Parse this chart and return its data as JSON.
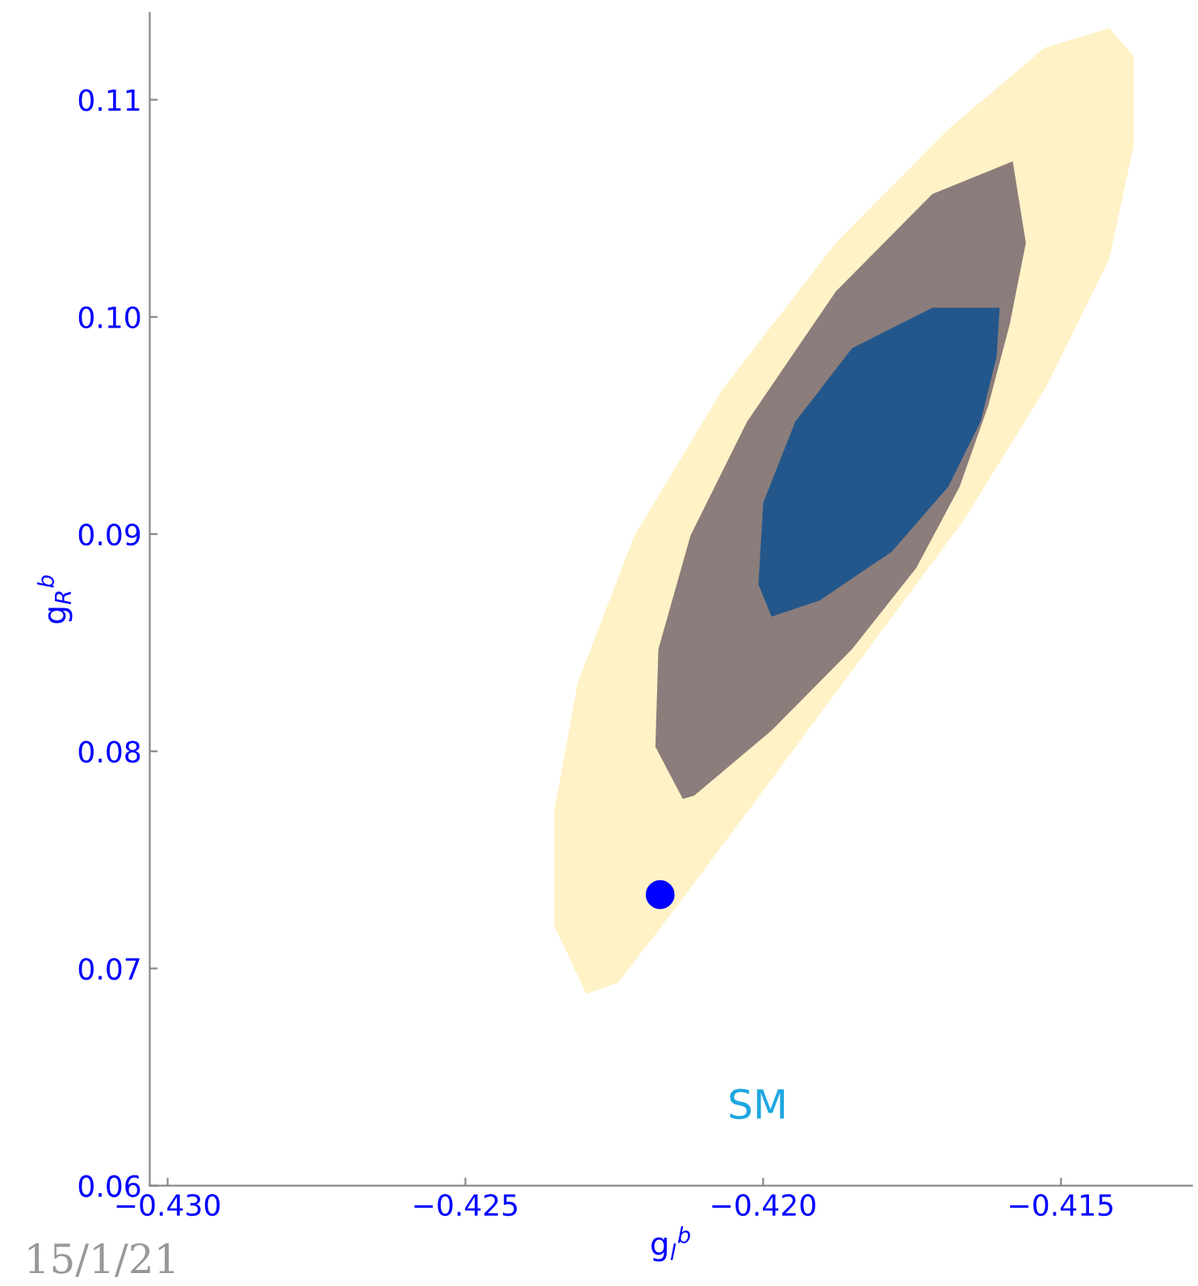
{
  "chart_data": {
    "type": "area",
    "xlabel": "g$_{l}$$^{b}$",
    "ylabel": "g$_{R}$$^{b}$",
    "xlim": [
      -0.4303,
      -0.4128
    ],
    "ylim": [
      0.06,
      0.114
    ],
    "xticks": [
      {
        "value": -0.43,
        "label": "−0.430"
      },
      {
        "value": -0.425,
        "label": "−0.425"
      },
      {
        "value": -0.42,
        "label": "−0.420"
      },
      {
        "value": -0.415,
        "label": "−0.415"
      }
    ],
    "yticks": [
      {
        "value": 0.06,
        "label": "0.06"
      },
      {
        "value": 0.07,
        "label": "0.07"
      },
      {
        "value": 0.08,
        "label": "0.08"
      },
      {
        "value": 0.09,
        "label": "0.09"
      },
      {
        "value": 0.1,
        "label": "0.10"
      },
      {
        "value": 0.11,
        "label": "0.11"
      }
    ],
    "grid": false,
    "legend": false,
    "series": [
      {
        "color": "#fff2c6",
        "x": [
          -0.42297,
          -0.42351,
          -0.42351,
          -0.42311,
          -0.42216,
          -0.42068,
          -0.41878,
          -0.41689,
          -0.41527,
          -0.41419,
          -0.41378,
          -0.41378,
          -0.41419,
          -0.41527,
          -0.41662,
          -0.41824,
          -0.41986,
          -0.42149,
          -0.42243
        ],
        "values": [
          0.06883,
          0.07198,
          0.07722,
          0.0832,
          0.08994,
          0.09668,
          0.10341,
          0.10865,
          0.1124,
          0.11329,
          0.11202,
          0.1079,
          0.10266,
          0.09668,
          0.09069,
          0.0847,
          0.07871,
          0.07272,
          0.06936
        ]
      },
      {
        "color": "#8b7d7b",
        "x": [
          -0.42135,
          -0.42181,
          -0.42176,
          -0.42122,
          -0.42027,
          -0.41878,
          -0.41716,
          -0.41581,
          -0.41559,
          -0.41586,
          -0.41622,
          -0.4167,
          -0.41743,
          -0.41851,
          -0.41986,
          -0.42116
        ],
        "values": [
          0.07781,
          0.08021,
          0.0847,
          0.08994,
          0.09518,
          0.10117,
          0.10566,
          0.10716,
          0.10341,
          0.09967,
          0.09593,
          0.09219,
          0.08844,
          0.0847,
          0.08096,
          0.07796
        ]
      },
      {
        "color": "#23578c",
        "x": [
          -0.41986,
          -0.42008,
          -0.42,
          -0.41946,
          -0.41851,
          -0.41716,
          -0.41603,
          -0.41608,
          -0.41635,
          -0.41689,
          -0.41784,
          -0.41905
        ],
        "values": [
          0.0862,
          0.08769,
          0.09144,
          0.09518,
          0.09855,
          0.10042,
          0.10042,
          0.09817,
          0.09518,
          0.09219,
          0.08919,
          0.08695
        ]
      },
      {
        "type": "scatter",
        "name": "SM",
        "color": "#0000ff",
        "marker": "circle",
        "x": [
          -0.42173
        ],
        "values": [
          0.0734
        ]
      }
    ],
    "annotations": [
      "15/1/21"
    ]
  }
}
